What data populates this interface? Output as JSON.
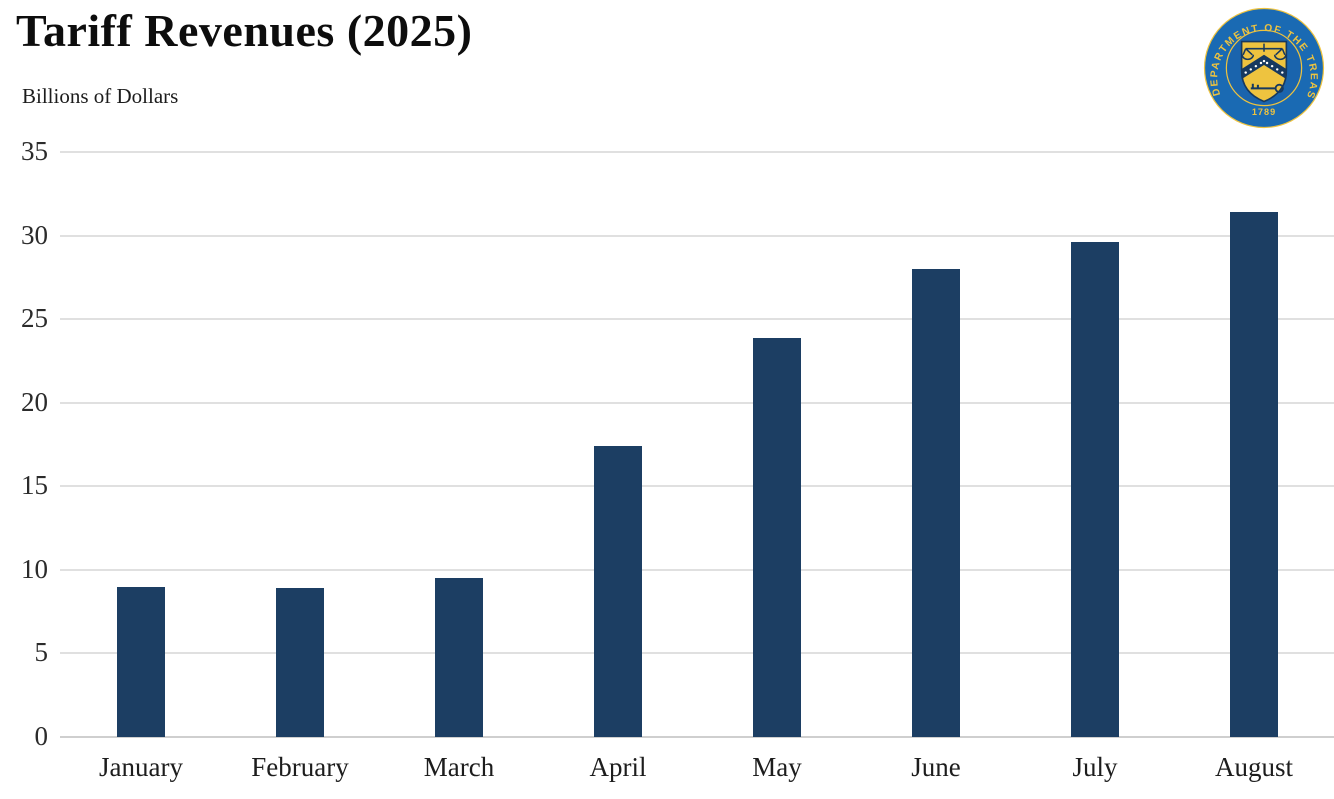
{
  "header": {
    "title": "Tariff Revenues (2025)",
    "subtitle": "Billions of Dollars"
  },
  "seal": {
    "ring_text": "THE DEPARTMENT OF THE TREASURY",
    "year": "1789",
    "colors": {
      "blue": "#1a6ab3",
      "inner_blue": "#1a64ad",
      "gold": "#eec33f",
      "navy": "#17395f",
      "white": "#ffffff"
    }
  },
  "chart_data": {
    "type": "bar",
    "title": "Tariff Revenues (2025)",
    "xlabel": "",
    "ylabel": "Billions of Dollars",
    "categories": [
      "January",
      "February",
      "March",
      "April",
      "May",
      "June",
      "July",
      "August"
    ],
    "values": [
      9.0,
      8.9,
      9.5,
      17.4,
      23.9,
      28.0,
      29.6,
      31.4
    ],
    "ylim": [
      0,
      35
    ],
    "yticks": [
      0,
      5,
      10,
      15,
      20,
      25,
      30,
      35
    ],
    "grid": true,
    "legend": "none",
    "bar_color": "#1c3e63",
    "gridline_color": "#e0e0e0",
    "baseline_color": "#cfcfcf"
  }
}
